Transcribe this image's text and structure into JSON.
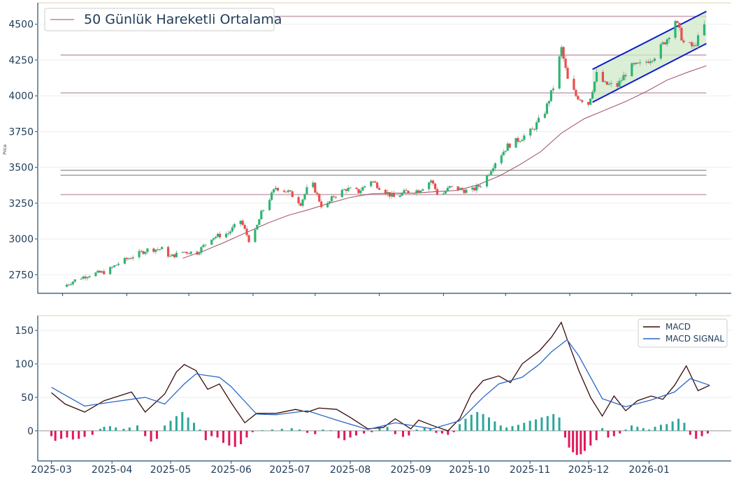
{
  "colors": {
    "up": "#26a69a",
    "down": "#ef5350",
    "up_candle": "#2bb673",
    "down_candle": "#ee4b4b",
    "ma": "#9e4a63",
    "hline": "#c9a8b6",
    "hline_gray": "#a8a8a8",
    "channel": "#0a1cc8",
    "channel_fill": "#cfe8c8",
    "macd": "#3a0a0a",
    "signal": "#2a66c8",
    "hist_pos": "#2aa89a",
    "hist_neg": "#e0185a",
    "axis": "#1f4e6b"
  },
  "chart_data": [
    {
      "type": "candlestick",
      "ylabel": "Price",
      "ylim": [
        2620,
        4650
      ],
      "yticks": [
        2750,
        3000,
        3250,
        3500,
        3750,
        4000,
        4250,
        4500
      ],
      "legend": {
        "label": "50 Günlük Hareketli Ortalama",
        "placement": "top-left"
      },
      "x_months": [
        "2025-03",
        "2025-04",
        "2025-05",
        "2025-06",
        "2025-07",
        "2025-08",
        "2025-09",
        "2025-10",
        "2025-11",
        "2025-12",
        "2026-01"
      ],
      "xlim": [
        "2025-02-17",
        "2026-01-18"
      ],
      "horizontal_lines": [
        {
          "value": 4555,
          "style": "reddish"
        },
        {
          "value": 4285,
          "style": "reddish"
        },
        {
          "value": 4020,
          "style": "reddish"
        },
        {
          "value": 3480,
          "style": "gray"
        },
        {
          "value": 3445,
          "style": "gray"
        },
        {
          "value": 3310,
          "style": "reddish"
        }
      ],
      "hlines_x_range": [
        "2025-02-28",
        "2026-01-06"
      ],
      "channel": {
        "upper": [
          [
            "2025-11-12",
            4185
          ],
          [
            "2026-01-06",
            4590
          ]
        ],
        "lower": [
          [
            "2025-11-12",
            3955
          ],
          [
            "2026-01-06",
            4365
          ]
        ]
      },
      "moving_average_50": [
        [
          "2025-04-28",
          2865
        ],
        [
          "2025-05-08",
          2915
        ],
        [
          "2025-05-18",
          2975
        ],
        [
          "2025-05-28",
          3040
        ],
        [
          "2025-06-08",
          3110
        ],
        [
          "2025-06-18",
          3165
        ],
        [
          "2025-06-28",
          3205
        ],
        [
          "2025-07-08",
          3250
        ],
        [
          "2025-07-18",
          3290
        ],
        [
          "2025-07-28",
          3315
        ],
        [
          "2025-08-08",
          3320
        ],
        [
          "2025-08-18",
          3320
        ],
        [
          "2025-08-28",
          3330
        ],
        [
          "2025-09-08",
          3340
        ],
        [
          "2025-09-18",
          3380
        ],
        [
          "2025-09-28",
          3440
        ],
        [
          "2025-10-08",
          3520
        ],
        [
          "2025-10-18",
          3610
        ],
        [
          "2025-10-28",
          3740
        ],
        [
          "2025-11-08",
          3840
        ],
        [
          "2025-11-18",
          3900
        ],
        [
          "2025-11-28",
          3960
        ],
        [
          "2025-12-08",
          4030
        ],
        [
          "2025-12-18",
          4110
        ],
        [
          "2025-12-28",
          4165
        ],
        [
          "2026-01-06",
          4210
        ]
      ],
      "close_path": [
        [
          "2025-03-01",
          2665
        ],
        [
          "2025-03-08",
          2720
        ],
        [
          "2025-03-15",
          2755
        ],
        [
          "2025-03-22",
          2770
        ],
        [
          "2025-03-28",
          2830
        ],
        [
          "2025-04-04",
          2880
        ],
        [
          "2025-04-11",
          2925
        ],
        [
          "2025-04-18",
          2930
        ],
        [
          "2025-04-22",
          2875
        ],
        [
          "2025-04-28",
          2910
        ],
        [
          "2025-05-05",
          2905
        ],
        [
          "2025-05-12",
          3010
        ],
        [
          "2025-05-20",
          3040
        ],
        [
          "2025-05-26",
          3130
        ],
        [
          "2025-05-31",
          2960
        ],
        [
          "2025-06-05",
          3180
        ],
        [
          "2025-06-12",
          3360
        ],
        [
          "2025-06-18",
          3330
        ],
        [
          "2025-06-24",
          3250
        ],
        [
          "2025-06-29",
          3410
        ],
        [
          "2025-07-05",
          3200
        ],
        [
          "2025-07-10",
          3300
        ],
        [
          "2025-07-16",
          3350
        ],
        [
          "2025-07-22",
          3330
        ],
        [
          "2025-07-28",
          3410
        ],
        [
          "2025-08-03",
          3340
        ],
        [
          "2025-08-08",
          3290
        ],
        [
          "2025-08-14",
          3330
        ],
        [
          "2025-08-20",
          3340
        ],
        [
          "2025-08-26",
          3410
        ],
        [
          "2025-08-30",
          3290
        ],
        [
          "2025-09-04",
          3360
        ],
        [
          "2025-09-08",
          3350
        ],
        [
          "2025-09-14",
          3330
        ],
        [
          "2025-09-20",
          3390
        ],
        [
          "2025-09-26",
          3540
        ],
        [
          "2025-10-02",
          3650
        ],
        [
          "2025-10-08",
          3700
        ],
        [
          "2025-10-14",
          3760
        ],
        [
          "2025-10-20",
          3890
        ],
        [
          "2025-10-24",
          4060
        ],
        [
          "2025-10-28",
          4330
        ],
        [
          "2025-10-31",
          4110
        ],
        [
          "2025-11-04",
          4000
        ],
        [
          "2025-11-10",
          3945
        ],
        [
          "2025-11-14",
          4150
        ],
        [
          "2025-11-18",
          4080
        ],
        [
          "2025-11-24",
          4070
        ],
        [
          "2025-11-30",
          4200
        ],
        [
          "2025-12-06",
          4220
        ],
        [
          "2025-12-12",
          4280
        ],
        [
          "2025-12-18",
          4400
        ],
        [
          "2025-12-22",
          4530
        ],
        [
          "2025-12-26",
          4370
        ],
        [
          "2025-12-31",
          4340
        ],
        [
          "2026-01-05",
          4490
        ]
      ]
    },
    {
      "type": "line+bar",
      "ylim": [
        -45,
        172
      ],
      "yticks": [
        0,
        50,
        100,
        150
      ],
      "legend": {
        "placement": "top-right"
      },
      "series": [
        {
          "name": "MACD",
          "points": [
            [
              "2025-03-01",
              57
            ],
            [
              "2025-03-08",
              40
            ],
            [
              "2025-03-18",
              28
            ],
            [
              "2025-03-28",
              45
            ],
            [
              "2025-04-11",
              58
            ],
            [
              "2025-04-18",
              28
            ],
            [
              "2025-04-28",
              55
            ],
            [
              "2025-05-04",
              88
            ],
            [
              "2025-05-08",
              99
            ],
            [
              "2025-05-14",
              90
            ],
            [
              "2025-05-20",
              62
            ],
            [
              "2025-05-26",
              70
            ],
            [
              "2025-06-01",
              42
            ],
            [
              "2025-06-08",
              12
            ],
            [
              "2025-06-14",
              26
            ],
            [
              "2025-06-24",
              26
            ],
            [
              "2025-07-04",
              32
            ],
            [
              "2025-07-10",
              28
            ],
            [
              "2025-07-16",
              34
            ],
            [
              "2025-07-25",
              32
            ],
            [
              "2025-08-01",
              20
            ],
            [
              "2025-08-10",
              3
            ],
            [
              "2025-08-18",
              5
            ],
            [
              "2025-08-24",
              18
            ],
            [
              "2025-09-01",
              3
            ],
            [
              "2025-09-05",
              16
            ],
            [
              "2025-09-12",
              8
            ],
            [
              "2025-09-20",
              0
            ],
            [
              "2025-09-26",
              18
            ],
            [
              "2025-10-02",
              55
            ],
            [
              "2025-10-08",
              75
            ],
            [
              "2025-10-16",
              82
            ],
            [
              "2025-10-22",
              72
            ],
            [
              "2025-10-28",
              100
            ],
            [
              "2025-11-06",
              120
            ],
            [
              "2025-11-12",
              140
            ],
            [
              "2025-11-17",
              162
            ],
            [
              "2025-11-20",
              137
            ],
            [
              "2025-11-26",
              90
            ],
            [
              "2025-12-02",
              50
            ],
            [
              "2025-12-08",
              22
            ],
            [
              "2025-12-14",
              52
            ],
            [
              "2025-12-20",
              30
            ],
            [
              "2025-12-26",
              45
            ],
            [
              "2026-01-02",
              52
            ],
            [
              "2026-01-08",
              47
            ],
            [
              "2026-01-14",
              68
            ],
            [
              "2026-01-20",
              97
            ],
            [
              "2026-01-26",
              60
            ],
            [
              "2026-02-01",
              68
            ]
          ]
        },
        {
          "name": "MACD SIGNAL",
          "points": [
            [
              "2025-03-01",
              65
            ],
            [
              "2025-03-18",
              37
            ],
            [
              "2025-04-01",
              43
            ],
            [
              "2025-04-18",
              50
            ],
            [
              "2025-04-28",
              40
            ],
            [
              "2025-05-08",
              70
            ],
            [
              "2025-05-14",
              85
            ],
            [
              "2025-05-26",
              80
            ],
            [
              "2025-06-01",
              66
            ],
            [
              "2025-06-14",
              25
            ],
            [
              "2025-06-24",
              24
            ],
            [
              "2025-07-10",
              30
            ],
            [
              "2025-07-25",
              16
            ],
            [
              "2025-08-10",
              2
            ],
            [
              "2025-08-24",
              12
            ],
            [
              "2025-09-12",
              3
            ],
            [
              "2025-09-26",
              15
            ],
            [
              "2025-10-08",
              50
            ],
            [
              "2025-10-16",
              70
            ],
            [
              "2025-10-28",
              80
            ],
            [
              "2025-11-06",
              100
            ],
            [
              "2025-11-12",
              118
            ],
            [
              "2025-11-20",
              136
            ],
            [
              "2025-11-26",
              112
            ],
            [
              "2025-12-02",
              80
            ],
            [
              "2025-12-08",
              48
            ],
            [
              "2025-12-20",
              36
            ],
            [
              "2026-01-02",
              46
            ],
            [
              "2026-01-14",
              58
            ],
            [
              "2026-01-22",
              78
            ],
            [
              "2026-02-01",
              68
            ]
          ]
        }
      ],
      "histogram": [
        [
          "2025-03-01",
          -8
        ],
        [
          "2025-03-03",
          -15
        ],
        [
          "2025-03-06",
          -12
        ],
        [
          "2025-03-09",
          -10
        ],
        [
          "2025-03-12",
          -13
        ],
        [
          "2025-03-15",
          -12
        ],
        [
          "2025-03-18",
          -9
        ],
        [
          "2025-03-22",
          -6
        ],
        [
          "2025-03-26",
          3
        ],
        [
          "2025-03-28",
          6
        ],
        [
          "2025-03-31",
          7
        ],
        [
          "2025-04-03",
          5
        ],
        [
          "2025-04-07",
          3
        ],
        [
          "2025-04-10",
          5
        ],
        [
          "2025-04-14",
          8
        ],
        [
          "2025-04-18",
          -8
        ],
        [
          "2025-04-21",
          -16
        ],
        [
          "2025-04-24",
          -12
        ],
        [
          "2025-04-28",
          8
        ],
        [
          "2025-05-01",
          15
        ],
        [
          "2025-05-04",
          22
        ],
        [
          "2025-05-07",
          28
        ],
        [
          "2025-05-10",
          20
        ],
        [
          "2025-05-13",
          12
        ],
        [
          "2025-05-16",
          2
        ],
        [
          "2025-05-19",
          -14
        ],
        [
          "2025-05-22",
          -8
        ],
        [
          "2025-05-25",
          -10
        ],
        [
          "2025-05-28",
          -18
        ],
        [
          "2025-05-31",
          -22
        ],
        [
          "2025-06-03",
          -24
        ],
        [
          "2025-06-06",
          -20
        ],
        [
          "2025-06-09",
          -10
        ],
        [
          "2025-06-12",
          -2
        ],
        [
          "2025-06-17",
          1
        ],
        [
          "2025-06-22",
          2
        ],
        [
          "2025-06-27",
          3
        ],
        [
          "2025-07-02",
          4
        ],
        [
          "2025-07-06",
          2
        ],
        [
          "2025-07-10",
          -3
        ],
        [
          "2025-07-14",
          -5
        ],
        [
          "2025-07-18",
          2
        ],
        [
          "2025-07-22",
          1
        ],
        [
          "2025-07-26",
          -11
        ],
        [
          "2025-07-29",
          -14
        ],
        [
          "2025-08-01",
          -10
        ],
        [
          "2025-08-04",
          -7
        ],
        [
          "2025-08-08",
          -4
        ],
        [
          "2025-08-12",
          -2
        ],
        [
          "2025-08-16",
          4
        ],
        [
          "2025-08-20",
          6
        ],
        [
          "2025-08-24",
          -5
        ],
        [
          "2025-08-28",
          -9
        ],
        [
          "2025-08-31",
          -7
        ],
        [
          "2025-09-04",
          2
        ],
        [
          "2025-09-08",
          5
        ],
        [
          "2025-09-11",
          3
        ],
        [
          "2025-09-14",
          -3
        ],
        [
          "2025-09-17",
          -4
        ],
        [
          "2025-09-20",
          -6
        ],
        [
          "2025-09-23",
          -2
        ],
        [
          "2025-09-26",
          10
        ],
        [
          "2025-09-29",
          18
        ],
        [
          "2025-10-02",
          24
        ],
        [
          "2025-10-05",
          28
        ],
        [
          "2025-10-08",
          25
        ],
        [
          "2025-10-11",
          20
        ],
        [
          "2025-10-14",
          14
        ],
        [
          "2025-10-17",
          8
        ],
        [
          "2025-10-20",
          5
        ],
        [
          "2025-10-23",
          7
        ],
        [
          "2025-10-26",
          9
        ],
        [
          "2025-10-29",
          12
        ],
        [
          "2025-11-01",
          15
        ],
        [
          "2025-11-04",
          17
        ],
        [
          "2025-11-07",
          20
        ],
        [
          "2025-11-10",
          22
        ],
        [
          "2025-11-13",
          25
        ],
        [
          "2025-11-16",
          20
        ],
        [
          "2025-11-19",
          -10
        ],
        [
          "2025-11-21",
          -25
        ],
        [
          "2025-11-23",
          -32
        ],
        [
          "2025-11-25",
          -36
        ],
        [
          "2025-11-27",
          -35
        ],
        [
          "2025-11-29",
          -30
        ],
        [
          "2025-12-02",
          -22
        ],
        [
          "2025-12-05",
          -14
        ],
        [
          "2025-12-08",
          4
        ],
        [
          "2025-12-11",
          -10
        ],
        [
          "2025-12-14",
          -8
        ],
        [
          "2025-12-17",
          -4
        ],
        [
          "2025-12-20",
          2
        ],
        [
          "2025-12-23",
          8
        ],
        [
          "2025-12-26",
          6
        ],
        [
          "2025-12-29",
          4
        ],
        [
          "2026-01-01",
          2
        ],
        [
          "2026-01-04",
          6
        ],
        [
          "2026-01-07",
          9
        ],
        [
          "2026-01-10",
          10
        ],
        [
          "2026-01-13",
          14
        ],
        [
          "2026-01-16",
          18
        ],
        [
          "2026-01-19",
          12
        ],
        [
          "2026-01-22",
          -6
        ],
        [
          "2026-01-25",
          -12
        ],
        [
          "2026-01-28",
          -8
        ],
        [
          "2026-01-31",
          -4
        ]
      ]
    }
  ]
}
